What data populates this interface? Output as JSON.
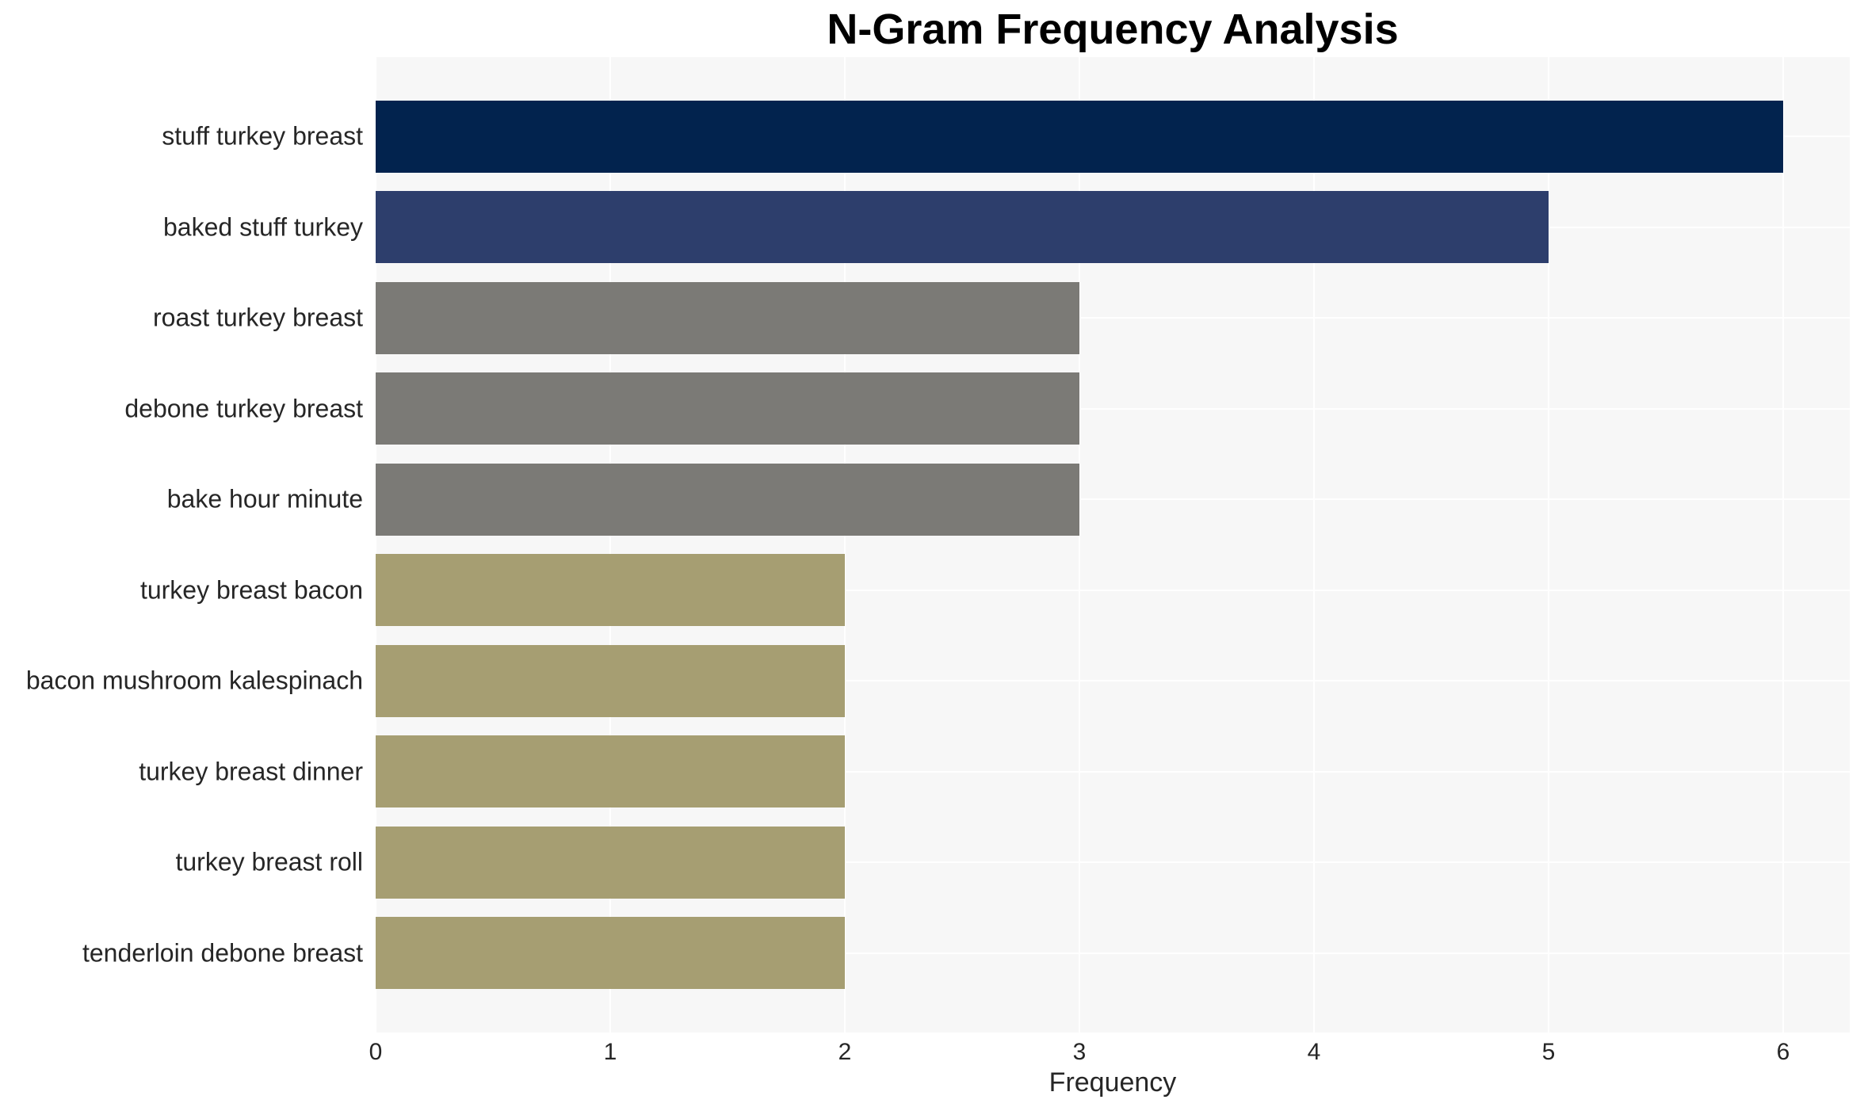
{
  "chart_data": {
    "type": "bar",
    "orientation": "horizontal",
    "title": "N-Gram Frequency Analysis",
    "xlabel": "Frequency",
    "ylabel": "",
    "categories": [
      "stuff turkey breast",
      "baked stuff turkey",
      "roast turkey breast",
      "debone turkey breast",
      "bake hour minute",
      "turkey breast bacon",
      "bacon mushroom kalespinach",
      "turkey breast dinner",
      "turkey breast roll",
      "tenderloin debone breast"
    ],
    "values": [
      6,
      5,
      3,
      3,
      3,
      2,
      2,
      2,
      2,
      2
    ],
    "bar_colors": [
      "#02234E",
      "#2D3E6C",
      "#7B7A76",
      "#7B7A76",
      "#7B7A76",
      "#A69E72",
      "#A69E72",
      "#A69E72",
      "#A69E72",
      "#A69E72"
    ],
    "xticks": [
      "0",
      "1",
      "2",
      "3",
      "4",
      "5",
      "6"
    ],
    "xlim": [
      0,
      6.28
    ],
    "grid": true,
    "legend_position": "none",
    "colors": {
      "plot_background": "#F7F7F7",
      "page_background": "#FFFFFF",
      "gridline": "#FFFFFF",
      "text": "#262626",
      "title_text": "#000000"
    }
  }
}
